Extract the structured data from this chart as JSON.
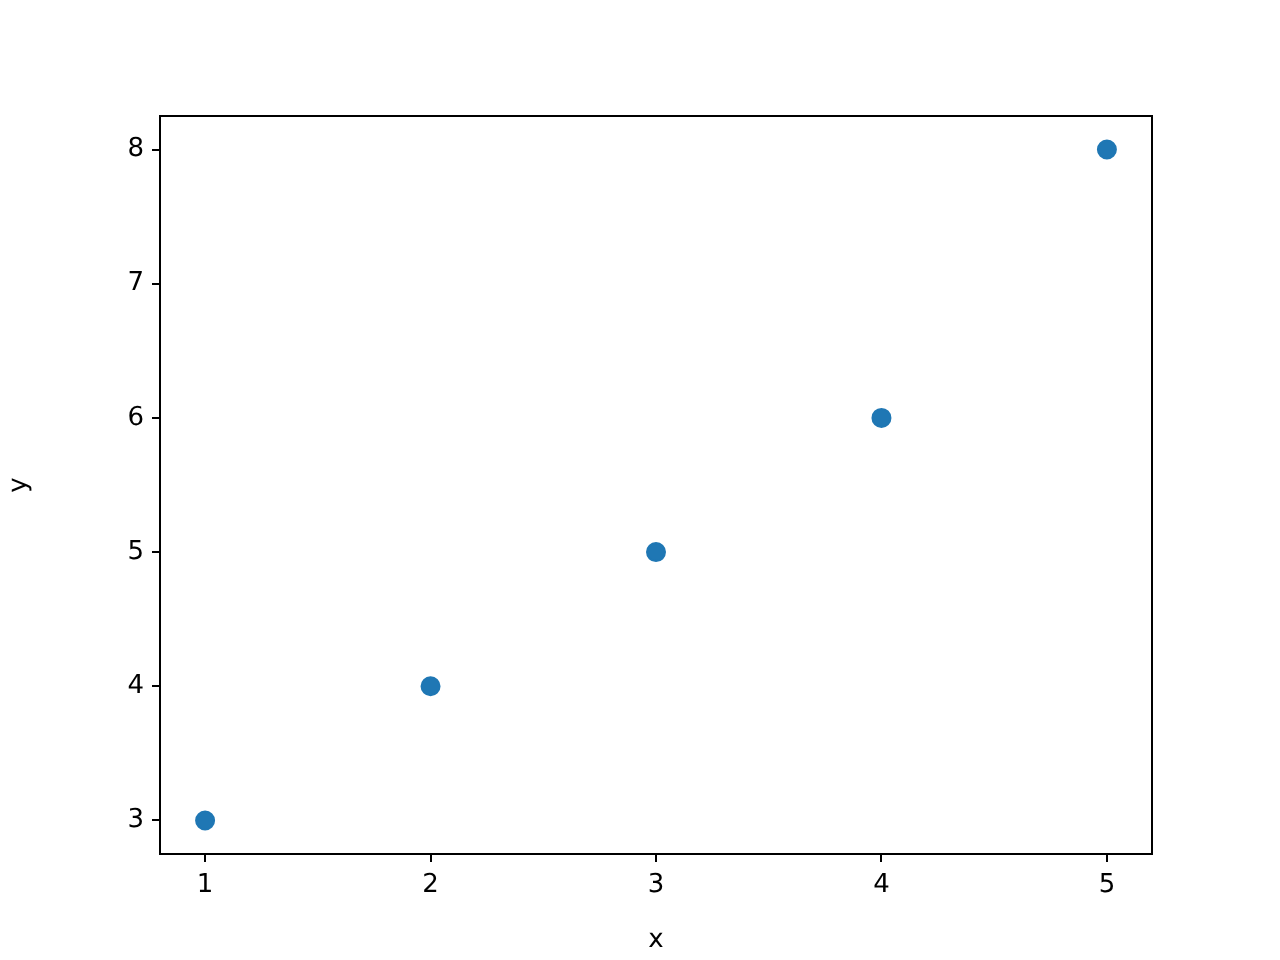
{
  "chart_data": {
    "type": "scatter",
    "xlabel": "x",
    "ylabel": "y",
    "x": [
      1,
      2,
      3,
      4,
      5
    ],
    "series": [
      {
        "color": "#1f77b4",
        "values": [
          3,
          4,
          5,
          6,
          8
        ]
      }
    ],
    "xlim": [
      0.8,
      5.2
    ],
    "xticks": [
      1,
      2,
      3,
      4,
      5
    ],
    "ylim": [
      2.75,
      8.25
    ],
    "yticks": [
      3,
      4,
      5,
      6,
      7,
      8
    ],
    "grid": false,
    "legend": false,
    "marker": "circle"
  }
}
